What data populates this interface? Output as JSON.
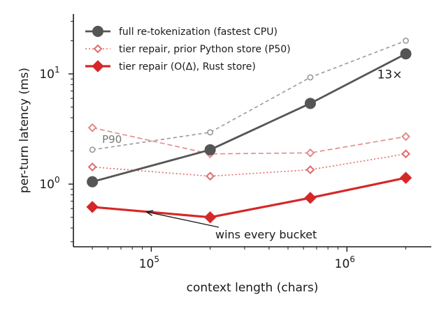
{
  "chart_data": {
    "type": "line",
    "title": "",
    "xlabel": "context length (chars)",
    "ylabel": "per-turn latency (ms)",
    "x_scale": "log",
    "y_scale": "log",
    "xlim": [
      40000,
      2700000
    ],
    "ylim": [
      0.27,
      35
    ],
    "grid": false,
    "legend_position": "top-left",
    "x_ticks": [
      {
        "value": 100000,
        "mantissa": "10",
        "exponent": "5"
      },
      {
        "value": 1000000,
        "mantissa": "10",
        "exponent": "6"
      }
    ],
    "y_ticks": [
      {
        "value": 1,
        "mantissa": "10",
        "exponent": "0"
      },
      {
        "value": 10,
        "mantissa": "10",
        "exponent": "1"
      }
    ],
    "x": [
      50000,
      200000,
      650000,
      2000000
    ],
    "series": [
      {
        "name": "full re-tokenization (fastest CPU)",
        "values": [
          1.05,
          2.05,
          5.4,
          15.2
        ],
        "color": "#555555",
        "style": "solid-circle"
      },
      {
        "name": "",
        "values": [
          2.05,
          2.95,
          9.3,
          20.0
        ],
        "color": "#999999",
        "style": "dashed-open-circle"
      },
      {
        "name": "tier repair, prior Python store (P50)",
        "values": [
          1.43,
          1.18,
          1.35,
          1.88
        ],
        "color": "#e06b6b",
        "style": "dotted-open-diamond"
      },
      {
        "name": "",
        "values": [
          3.25,
          1.88,
          1.92,
          2.7
        ],
        "color": "#e08a8a",
        "style": "dashed-open-diamond"
      },
      {
        "name": "tier repair (O(Δ), Rust store)",
        "values": [
          0.62,
          0.5,
          0.75,
          1.14
        ],
        "color": "#d62728",
        "style": "solid-diamond"
      }
    ],
    "legend": [
      {
        "label": "full re-tokenization (fastest CPU)",
        "series": 0
      },
      {
        "label": "tier repair, prior Python store (P50)",
        "series": 2
      },
      {
        "label": "tier repair (O(Δ), Rust store)",
        "series": 4
      }
    ],
    "annotations": {
      "p90_label": "P90",
      "speedup_label": "13×",
      "wins_label": "wins every bucket",
      "arrow_target": {
        "x": 95000,
        "y": 0.56
      }
    }
  }
}
